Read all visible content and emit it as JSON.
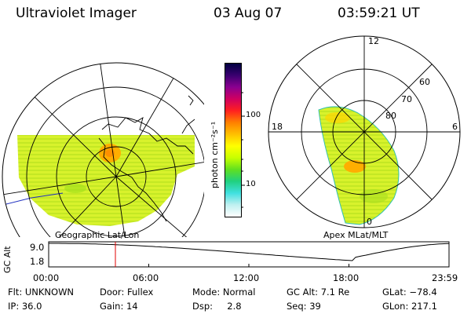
{
  "header": {
    "instrument": "Ultraviolet Imager",
    "date": "03 Aug 07",
    "time": "03:59:21 UT"
  },
  "colorbar": {
    "unit_label": "photon cm⁻²s⁻¹",
    "tick_100": "100",
    "tick_10": "10",
    "colors": [
      "#000040",
      "#3a0070",
      "#8a0090",
      "#d00060",
      "#ff2020",
      "#ff8000",
      "#ffc000",
      "#ffff00",
      "#c8ff00",
      "#60e020",
      "#20d080",
      "#40e0e0",
      "#c0f0f0",
      "#ffffff"
    ]
  },
  "geographic_map": {
    "caption": "Geographic Lat/Lon",
    "fill_color": "#d4f02a",
    "hot_color": "#ff9a00"
  },
  "polar_map": {
    "caption": "Apex MLat/MLT",
    "mlt_labels": {
      "top": "12",
      "left": "18",
      "right": "6",
      "bottom": "0"
    },
    "mlat_labels": [
      "60",
      "70",
      "80"
    ]
  },
  "altitude_plot": {
    "ylabel": "GC Alt",
    "ymax": "9.0",
    "ymin": "1.8",
    "x_ticks": [
      "00:00",
      "06:00",
      "12:00",
      "18:00",
      "23:59"
    ],
    "marker_hour": 4.0,
    "marker_color": "#e00000"
  },
  "info": {
    "filter": "Flt: UNKNOWN",
    "ip": "IP: 36.0",
    "door": "Door: Fullex",
    "gain": "Gain: 14",
    "mode": "Mode: Normal",
    "dsp": "Dsp:     2.8",
    "gc_alt": "GC Alt: 7.1 Re",
    "seq": "Seq: 39",
    "glat": "GLat: −78.4",
    "glon": "GLon: 217.1"
  }
}
